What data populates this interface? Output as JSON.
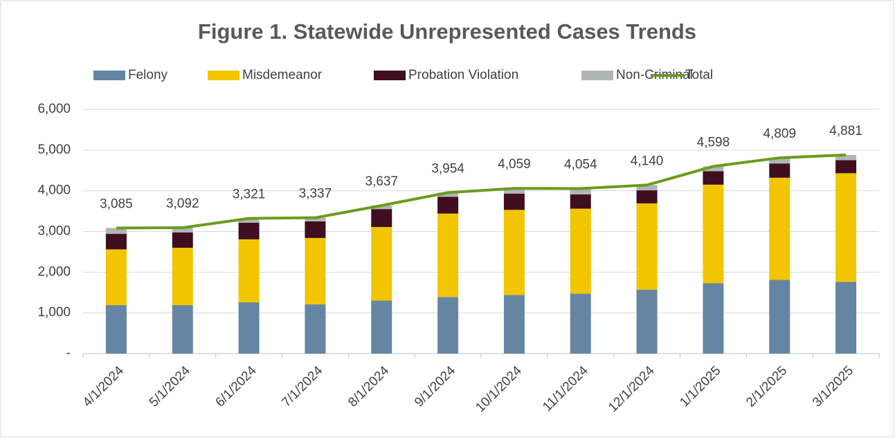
{
  "chart_data": {
    "type": "stacked_bar_line",
    "title": "Figure 1. Statewide Unrepresented Cases Trends",
    "categories": [
      "4/1/2024",
      "5/1/2024",
      "6/1/2024",
      "7/1/2024",
      "8/1/2024",
      "9/1/2024",
      "10/1/2024",
      "11/1/2024",
      "12/1/2024",
      "1/1/2025",
      "2/1/2025",
      "3/1/2025"
    ],
    "series": [
      {
        "name": "Felony",
        "color": "#6585a3",
        "type": "bar",
        "values": [
          1190,
          1190,
          1260,
          1207,
          1300,
          1390,
          1440,
          1470,
          1570,
          1730,
          1810,
          1760
        ]
      },
      {
        "name": "Misdemeanor",
        "color": "#f2c500",
        "type": "bar",
        "values": [
          1370,
          1410,
          1546,
          1633,
          1810,
          2050,
          2090,
          2090,
          2120,
          2420,
          2510,
          2670
        ]
      },
      {
        "name": "Probation Violation",
        "color": "#3f0f1f",
        "type": "bar",
        "values": [
          380,
          375,
          408,
          408,
          440,
          410,
          400,
          350,
          320,
          330,
          350,
          320
        ]
      },
      {
        "name": "Non-Criminal",
        "color": "#b0b5b8",
        "type": "bar",
        "values": [
          145,
          117,
          107,
          89,
          87,
          104,
          129,
          144,
          130,
          118,
          139,
          131
        ]
      },
      {
        "name": "Total",
        "color": "#6b9a1e",
        "type": "line",
        "values": [
          3085,
          3092,
          3321,
          3337,
          3637,
          3954,
          4059,
          4054,
          4140,
          4598,
          4809,
          4881
        ],
        "value_labels": [
          "3,085",
          "3,092",
          "3,321",
          "3,337",
          "3,637",
          "3,954",
          "4,059",
          "4,054",
          "4,140",
          "4,598",
          "4,809",
          "4,881"
        ]
      }
    ],
    "ylim": [
      0,
      6000
    ],
    "yticks": [
      {
        "value": 0,
        "label": "-"
      },
      {
        "value": 1000,
        "label": "1,000"
      },
      {
        "value": 2000,
        "label": "2,000"
      },
      {
        "value": 3000,
        "label": "3,000"
      },
      {
        "value": 4000,
        "label": "4,000"
      },
      {
        "value": 5000,
        "label": "5,000"
      },
      {
        "value": 6000,
        "label": "6,000"
      }
    ],
    "grid": true,
    "legend": "top"
  }
}
